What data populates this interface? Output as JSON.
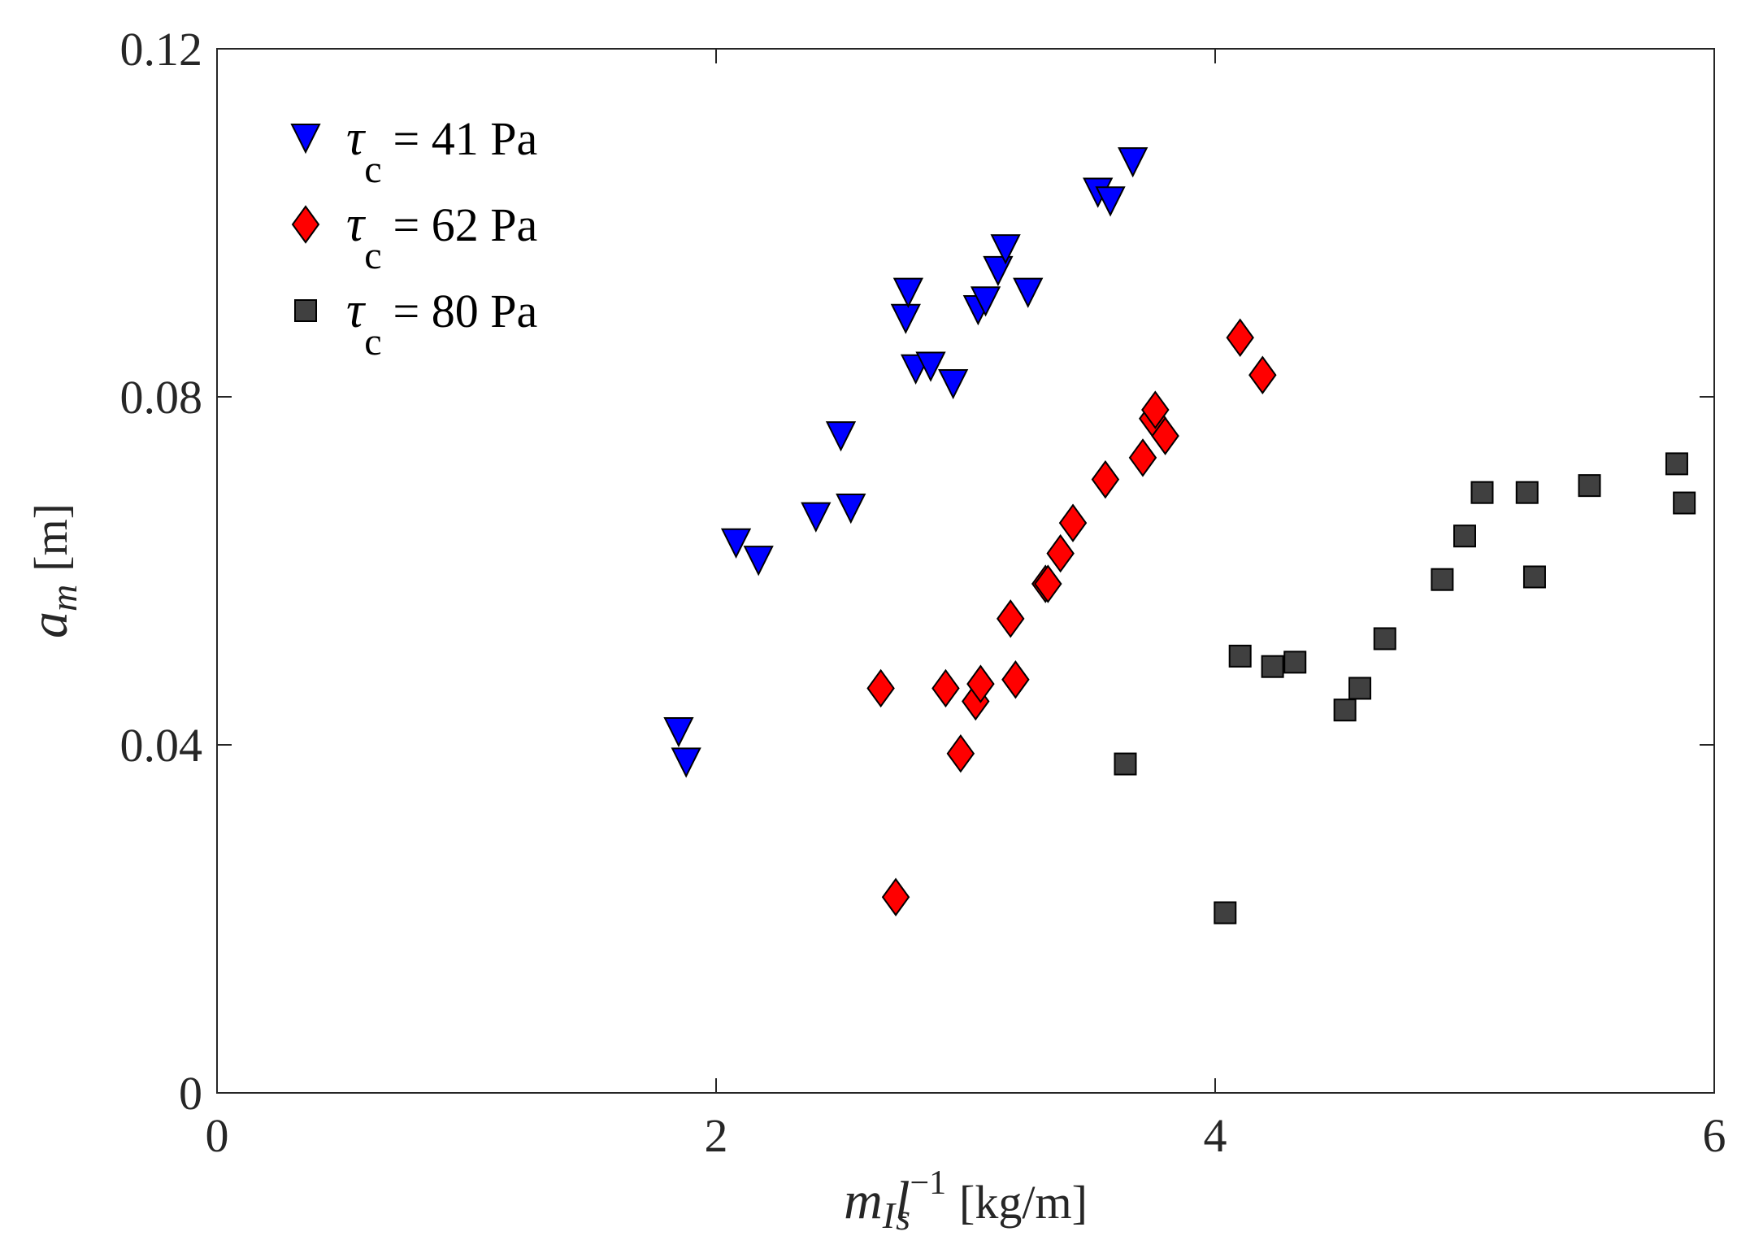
{
  "chart_data": {
    "type": "scatter",
    "title": "",
    "xlabel": {
      "main": "m",
      "sub": "I",
      "main2": "l",
      "sub2": "s",
      "sup2": "−1",
      "units": "[kg/m]"
    },
    "ylabel": {
      "main": "a",
      "sub": "m",
      "units": "[m]"
    },
    "xlim": [
      0,
      6
    ],
    "ylim": [
      0,
      0.12
    ],
    "xticks": [
      0,
      2,
      4,
      6
    ],
    "xtick_labels": [
      "0",
      "2",
      "4",
      "6"
    ],
    "yticks": [
      0,
      0.04,
      0.08,
      0.12
    ],
    "ytick_labels": [
      "0",
      "0.04",
      "0.08",
      "0.12"
    ],
    "grid": false,
    "legend_position": "top-left",
    "series": [
      {
        "name": "τc = 41 Pa",
        "label_symbol": "τ",
        "label_sub": "c",
        "label_rest": "= 41 Pa",
        "marker": "triangle-down",
        "color": "#0000ff",
        "points": [
          [
            1.85,
            0.0415
          ],
          [
            1.88,
            0.038
          ],
          [
            2.08,
            0.0632
          ],
          [
            2.17,
            0.0612
          ],
          [
            2.4,
            0.0662
          ],
          [
            2.5,
            0.0755
          ],
          [
            2.54,
            0.0672
          ],
          [
            2.76,
            0.089
          ],
          [
            2.77,
            0.092
          ],
          [
            2.8,
            0.0832
          ],
          [
            2.86,
            0.0835
          ],
          [
            2.95,
            0.0815
          ],
          [
            3.05,
            0.09
          ],
          [
            3.08,
            0.091
          ],
          [
            3.13,
            0.0945
          ],
          [
            3.16,
            0.097
          ],
          [
            3.25,
            0.092
          ],
          [
            3.53,
            0.1035
          ],
          [
            3.58,
            0.1025
          ],
          [
            3.67,
            0.107
          ]
        ]
      },
      {
        "name": "τc = 62 Pa",
        "label_symbol": "τ",
        "label_sub": "c",
        "label_rest": "= 62 Pa",
        "marker": "diamond",
        "color": "#ff0000",
        "points": [
          [
            2.66,
            0.0465
          ],
          [
            2.72,
            0.0225
          ],
          [
            2.92,
            0.0465
          ],
          [
            2.98,
            0.039
          ],
          [
            3.04,
            0.045
          ],
          [
            3.06,
            0.047
          ],
          [
            3.18,
            0.0545
          ],
          [
            3.2,
            0.0475
          ],
          [
            3.32,
            0.0585
          ],
          [
            3.33,
            0.0585
          ],
          [
            3.38,
            0.062
          ],
          [
            3.43,
            0.0655
          ],
          [
            3.56,
            0.0705
          ],
          [
            3.71,
            0.073
          ],
          [
            3.75,
            0.0775
          ],
          [
            3.76,
            0.0785
          ],
          [
            3.8,
            0.0755
          ],
          [
            4.1,
            0.0868
          ],
          [
            4.19,
            0.0825
          ]
        ]
      },
      {
        "name": "τc = 80 Pa",
        "label_symbol": "τ",
        "label_sub": "c",
        "label_rest": "= 80 Pa",
        "marker": "square",
        "color": "#404040",
        "points": [
          [
            3.64,
            0.0378
          ],
          [
            4.04,
            0.0207
          ],
          [
            4.1,
            0.0502
          ],
          [
            4.23,
            0.049
          ],
          [
            4.32,
            0.0495
          ],
          [
            4.52,
            0.044
          ],
          [
            4.58,
            0.0465
          ],
          [
            4.68,
            0.0522
          ],
          [
            4.91,
            0.059
          ],
          [
            5.0,
            0.064
          ],
          [
            5.07,
            0.069
          ],
          [
            5.25,
            0.069
          ],
          [
            5.28,
            0.0593
          ],
          [
            5.5,
            0.0698
          ],
          [
            5.85,
            0.0723
          ],
          [
            5.88,
            0.0678
          ]
        ]
      }
    ]
  }
}
